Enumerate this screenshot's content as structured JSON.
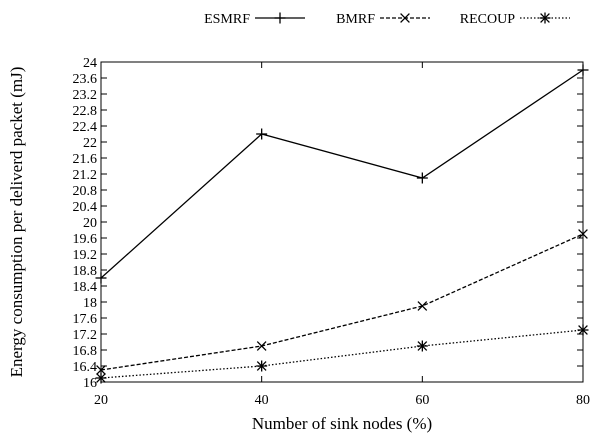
{
  "chart_data": {
    "type": "line",
    "title": "",
    "xlabel": "Number of sink nodes (%)",
    "ylabel": "Energy consumption per deliverd packet (mJ)",
    "x": [
      20,
      40,
      60,
      80
    ],
    "xticks": [
      "20",
      "40",
      "60",
      "80"
    ],
    "xlim": [
      20,
      80
    ],
    "ylim": [
      16,
      24
    ],
    "yticks": [
      16,
      16.4,
      16.8,
      17.2,
      17.6,
      18,
      18.4,
      18.8,
      19.2,
      19.6,
      20,
      20.4,
      20.8,
      21.2,
      21.6,
      22,
      22.4,
      22.8,
      23.2,
      23.6,
      24
    ],
    "grid": false,
    "legend_position": "top",
    "series": [
      {
        "name": "ESMRF",
        "values": [
          18.6,
          22.2,
          21.1,
          23.8
        ],
        "marker": "plus",
        "dash": "solid"
      },
      {
        "name": "BMRF",
        "values": [
          16.3,
          16.9,
          17.9,
          19.7
        ],
        "marker": "cross",
        "dash": "dashed"
      },
      {
        "name": "RECOUP",
        "values": [
          16.1,
          16.4,
          16.9,
          17.3
        ],
        "marker": "star",
        "dash": "dotted"
      }
    ]
  }
}
